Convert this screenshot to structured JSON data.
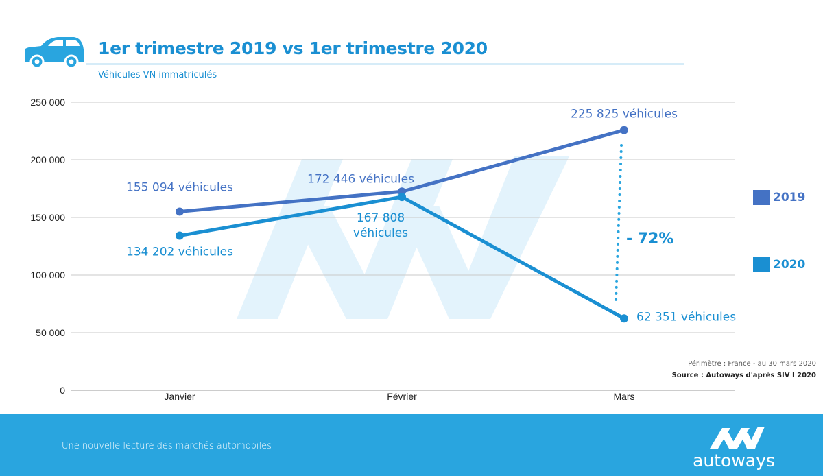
{
  "header": {
    "title": "1er trimestre 2019 vs 1er trimestre 2020",
    "subtitle": "Véhicules VN immatriculés"
  },
  "chart_data": {
    "type": "line",
    "title": "1er trimestre 2019 vs 1er trimestre 2020",
    "subtitle": "Véhicules VN immatriculés",
    "categories": [
      "Janvier",
      "Février",
      "Mars"
    ],
    "ylim": [
      0,
      250000
    ],
    "yticks": [
      0,
      50000,
      100000,
      150000,
      200000,
      250000
    ],
    "ytick_labels": [
      "0",
      "50 000",
      "100 000",
      "150 000",
      "200 000",
      "250 000"
    ],
    "grid": true,
    "legend_position": "right",
    "series": [
      {
        "name": "2019",
        "color": "#4472c4",
        "values": [
          155094,
          172446,
          225825
        ],
        "labels": [
          "155 094 véhicules",
          "172 446 véhicules",
          "225 825 véhicules"
        ]
      },
      {
        "name": "2020",
        "color": "#1a8fd2",
        "values": [
          134202,
          167808,
          62351
        ],
        "labels": [
          "134 202 véhicules",
          "167 808 véhicules",
          "62 351 véhicules"
        ]
      }
    ],
    "annotation": {
      "text": "- 72%",
      "category": "Mars",
      "color": "#1a8fd2",
      "line_color": "#29a5df"
    }
  },
  "legend": [
    {
      "label": "2019",
      "color": "#4472c4"
    },
    {
      "label": "2020",
      "color": "#1a8fd2"
    }
  ],
  "meta": {
    "perimeter": "Périmètre : France - au 30 mars 2020",
    "source": "Source : Autoways d'après SIV  I  2020"
  },
  "footer": {
    "tagline": "Une nouvelle lecture des marchés automobiles",
    "logo_text": "autoways",
    "background": "#29a5df"
  },
  "icons": {
    "car": "car-icon",
    "logo": "autoways-logo-icon",
    "watermark": "autoways-watermark"
  }
}
